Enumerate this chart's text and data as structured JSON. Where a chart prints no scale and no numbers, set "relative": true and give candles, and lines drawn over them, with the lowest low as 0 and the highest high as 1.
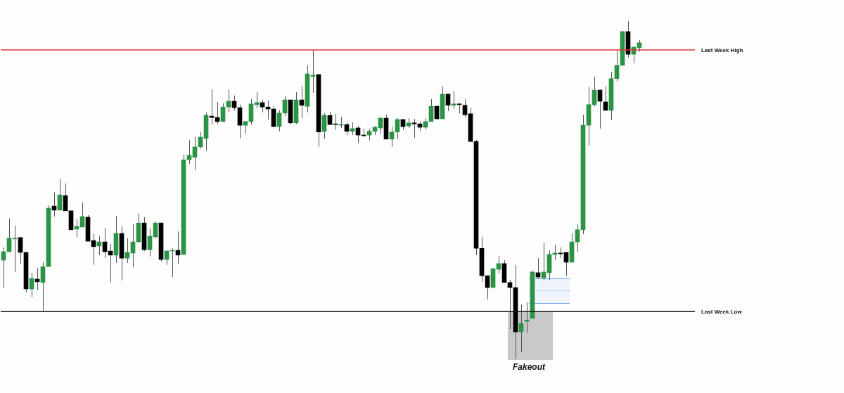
{
  "chart_data": {
    "type": "candlestick",
    "relative": true,
    "legend": false,
    "colors": [
      "#2b9444",
      "#2b9444",
      "#2b9444",
      "#000000",
      "#000000",
      "#2b9444",
      "#000000",
      "#2b9444",
      "#2b9444",
      "#000000",
      "#2b9444",
      "#000000",
      "#000000",
      "#2b9444",
      "#2b9444",
      "#000000",
      "#000000",
      "#2b9444",
      "#000000",
      "#000000",
      "#2b9444",
      "#000000",
      "#2b9444",
      "#2b9444",
      "#2b9444",
      "#000000",
      "#2b9444",
      "#2b9444",
      "#000000",
      "#2b9444",
      "#2b9444",
      "#000000",
      "#2b9444",
      "#2b9444",
      "#2b9444",
      "#2b9444",
      "#2b9444",
      "#000000",
      "#000000",
      "#2b9444",
      "#2b9444",
      "#000000",
      "#000000",
      "#2b9444",
      "#2b9444",
      "#2b9444",
      "#000000",
      "#000000",
      "#000000",
      "#2b9444",
      "#2b9444",
      "#000000",
      "#2b9444",
      "#000000",
      "#2b9444",
      "#2b9444",
      "#000000",
      "#2b9444",
      "#000000",
      "#000000",
      "#2b9444",
      "#000000",
      "#2b9444",
      "#000000",
      "#000000",
      "#2b9444",
      "#2b9444",
      "#2b9444",
      "#000000",
      "#2b9444",
      "#2b9444",
      "#000000",
      "#2b9444",
      "#000000",
      "#000000",
      "#2b9444",
      "#2b9444",
      "#000000",
      "#2b9444",
      "#000000",
      "#2b9444",
      "#000000",
      "#000000",
      "#000000",
      "#000000",
      "#000000",
      "#000000",
      "#2b9444",
      "#2b9444",
      "#000000",
      "#000000",
      "#000000",
      "#2b9444",
      "#2b9444",
      "#2b9444",
      "#000000",
      "#2b9444",
      "#2b9444",
      "#2b9444",
      "#000000",
      "#000000",
      "#2b9444",
      "#2b9444",
      "#2b9444",
      "#2b9444",
      "#2b9444",
      "#000000",
      "#000000",
      "#2b9444",
      "#2b9444",
      "#2b9444",
      "#000000",
      "#2b9444",
      "#2b9444"
    ],
    "categories": [
      null,
      null,
      null,
      null,
      null,
      null,
      null,
      null,
      null,
      null,
      null,
      null,
      null,
      null,
      null,
      null,
      null,
      null,
      null,
      null,
      null,
      null,
      null,
      null,
      null,
      null,
      null,
      null,
      null,
      null,
      null,
      null,
      null,
      null,
      null,
      null,
      null,
      null,
      null,
      null,
      null,
      null,
      null,
      null,
      null,
      null,
      null,
      null,
      null,
      null,
      null,
      null,
      null,
      null,
      null,
      null,
      null,
      null,
      null,
      null,
      null,
      null,
      null,
      null,
      null,
      null,
      null,
      null,
      null,
      null,
      null,
      null,
      null,
      null,
      null,
      null,
      null,
      null,
      null,
      null,
      null,
      null,
      null,
      null,
      null,
      null,
      null,
      null,
      null,
      null,
      null,
      null,
      null,
      null,
      null,
      null,
      null,
      null,
      null,
      null,
      null,
      null,
      null,
      null,
      null,
      null,
      null,
      null,
      null,
      null,
      null,
      null,
      null,
      null
    ],
    "ohlc": [
      [
        0.293,
        0.331,
        0.21,
        0.318
      ],
      [
        0.318,
        0.416,
        0.318,
        0.358
      ],
      [
        0.356,
        0.395,
        0.258,
        0.358
      ],
      [
        0.36,
        0.36,
        0.283,
        0.316
      ],
      [
        0.316,
        0.316,
        0.198,
        0.208
      ],
      [
        0.208,
        0.256,
        0.183,
        0.239
      ],
      [
        0.237,
        0.27,
        0.204,
        0.229
      ],
      [
        0.227,
        0.287,
        0.143,
        0.274
      ],
      [
        0.274,
        0.455,
        0.274,
        0.447
      ],
      [
        0.453,
        0.493,
        0.422,
        0.441
      ],
      [
        0.441,
        0.532,
        0.441,
        0.486
      ],
      [
        0.484,
        0.52,
        0.439,
        0.439
      ],
      [
        0.439,
        0.439,
        0.383,
        0.383
      ],
      [
        0.385,
        0.414,
        0.36,
        0.393
      ],
      [
        0.391,
        0.464,
        0.391,
        0.422
      ],
      [
        0.42,
        0.426,
        0.349,
        0.349
      ],
      [
        0.351,
        0.372,
        0.279,
        0.333
      ],
      [
        0.335,
        0.364,
        0.308,
        0.347
      ],
      [
        0.347,
        0.389,
        0.299,
        0.318
      ],
      [
        0.32,
        0.341,
        0.227,
        0.308
      ],
      [
        0.308,
        0.424,
        0.285,
        0.372
      ],
      [
        0.372,
        0.393,
        0.233,
        0.299
      ],
      [
        0.299,
        0.358,
        0.285,
        0.316
      ],
      [
        0.314,
        0.399,
        0.272,
        0.347
      ],
      [
        0.347,
        0.432,
        0.345,
        0.403
      ],
      [
        0.403,
        0.42,
        0.32,
        0.324
      ],
      [
        0.324,
        0.387,
        0.304,
        0.364
      ],
      [
        0.362,
        0.407,
        0.358,
        0.403
      ],
      [
        0.403,
        0.403,
        0.289,
        0.295
      ],
      [
        0.295,
        0.322,
        0.279,
        0.32
      ],
      [
        0.32,
        0.328,
        0.243,
        0.322
      ],
      [
        0.322,
        0.378,
        0.283,
        0.308
      ],
      [
        0.31,
        0.605,
        0.31,
        0.59
      ],
      [
        0.59,
        0.649,
        0.578,
        0.603
      ],
      [
        0.597,
        0.657,
        0.559,
        0.628
      ],
      [
        0.628,
        0.672,
        0.622,
        0.657
      ],
      [
        0.653,
        0.73,
        0.617,
        0.721
      ],
      [
        0.719,
        0.798,
        0.694,
        0.715
      ],
      [
        0.715,
        0.761,
        0.696,
        0.703
      ],
      [
        0.703,
        0.757,
        0.701,
        0.746
      ],
      [
        0.746,
        0.798,
        0.73,
        0.763
      ],
      [
        0.763,
        0.78,
        0.736,
        0.744
      ],
      [
        0.744,
        0.753,
        0.653,
        0.692
      ],
      [
        0.692,
        0.705,
        0.667,
        0.703
      ],
      [
        0.703,
        0.769,
        0.694,
        0.755
      ],
      [
        0.753,
        0.79,
        0.742,
        0.759
      ],
      [
        0.759,
        0.767,
        0.73,
        0.746
      ],
      [
        0.746,
        0.765,
        0.709,
        0.74
      ],
      [
        0.74,
        0.748,
        0.688,
        0.688
      ],
      [
        0.688,
        0.736,
        0.674,
        0.728
      ],
      [
        0.728,
        0.778,
        0.719,
        0.767
      ],
      [
        0.767,
        0.767,
        0.694,
        0.699
      ],
      [
        0.699,
        0.79,
        0.696,
        0.767
      ],
      [
        0.767,
        0.807,
        0.713,
        0.751
      ],
      [
        0.748,
        0.869,
        0.73,
        0.844
      ],
      [
        0.836,
        0.915,
        0.788,
        0.84
      ],
      [
        0.842,
        0.842,
        0.628,
        0.672
      ],
      [
        0.674,
        0.728,
        0.651,
        0.721
      ],
      [
        0.721,
        0.732,
        0.694,
        0.694
      ],
      [
        0.696,
        0.726,
        0.678,
        0.694
      ],
      [
        0.692,
        0.717,
        0.684,
        0.694
      ],
      [
        0.694,
        0.701,
        0.663,
        0.674
      ],
      [
        0.674,
        0.701,
        0.663,
        0.682
      ],
      [
        0.684,
        0.69,
        0.64,
        0.663
      ],
      [
        0.663,
        0.682,
        0.657,
        0.661
      ],
      [
        0.663,
        0.682,
        0.647,
        0.674
      ],
      [
        0.674,
        0.69,
        0.663,
        0.686
      ],
      [
        0.684,
        0.717,
        0.667,
        0.713
      ],
      [
        0.713,
        0.723,
        0.651,
        0.651
      ],
      [
        0.651,
        0.688,
        0.628,
        0.672
      ],
      [
        0.672,
        0.713,
        0.651,
        0.709
      ],
      [
        0.709,
        0.709,
        0.678,
        0.688
      ],
      [
        0.69,
        0.713,
        0.684,
        0.699
      ],
      [
        0.699,
        0.711,
        0.655,
        0.696
      ],
      [
        0.696,
        0.703,
        0.676,
        0.686
      ],
      [
        0.686,
        0.713,
        0.68,
        0.703
      ],
      [
        0.703,
        0.769,
        0.703,
        0.748
      ],
      [
        0.748,
        0.751,
        0.709,
        0.711
      ],
      [
        0.711,
        0.807,
        0.711,
        0.784
      ],
      [
        0.784,
        0.784,
        0.734,
        0.751
      ],
      [
        0.751,
        0.792,
        0.74,
        0.755
      ],
      [
        0.755,
        0.757,
        0.726,
        0.753
      ],
      [
        0.751,
        0.769,
        0.715,
        0.723
      ],
      [
        0.726,
        0.744,
        0.642,
        0.644
      ],
      [
        0.644,
        0.649,
        0.308,
        0.328
      ],
      [
        0.328,
        0.362,
        0.229,
        0.247
      ],
      [
        0.247,
        0.247,
        0.177,
        0.212
      ],
      [
        0.212,
        0.268,
        0.212,
        0.268
      ],
      [
        0.266,
        0.306,
        0.254,
        0.283
      ],
      [
        0.283,
        0.293,
        0.227,
        0.227
      ],
      [
        0.227,
        0.235,
        0.089,
        0.212
      ],
      [
        0.212,
        0.279,
        0,
        0.081
      ],
      [
        0.081,
        0.162,
        0.021,
        0.106
      ],
      [
        0.112,
        0.168,
        0.077,
        0.116
      ],
      [
        0.121,
        0.262,
        0.121,
        0.258
      ],
      [
        0.256,
        0.299,
        0.239,
        0.243
      ],
      [
        0.241,
        0.345,
        0.233,
        0.258
      ],
      [
        0.256,
        0.322,
        0.235,
        0.31
      ],
      [
        0.31,
        0.339,
        0.293,
        0.314
      ],
      [
        0.314,
        0.331,
        0.299,
        0.312
      ],
      [
        0.316,
        0.316,
        0.247,
        0.287
      ],
      [
        0.287,
        0.372,
        0.287,
        0.347
      ],
      [
        0.347,
        0.399,
        0.318,
        0.383
      ],
      [
        0.383,
        0.723,
        0.37,
        0.692
      ],
      [
        0.692,
        0.805,
        0.632,
        0.753
      ],
      [
        0.753,
        0.836,
        0.748,
        0.796
      ],
      [
        0.796,
        0.798,
        0.682,
        0.763
      ],
      [
        0.761,
        0.807,
        0.736,
        0.736
      ],
      [
        0.736,
        0.85,
        0.707,
        0.83
      ],
      [
        0.83,
        0.913,
        0.823,
        0.869
      ],
      [
        0.869,
        0.971,
        0.869,
        0.969
      ],
      [
        0.969,
        1,
        0.892,
        0.902
      ],
      [
        0.902,
        0.925,
        0.875,
        0.923
      ],
      [
        0.921,
        0.944,
        0.909,
        0.936
      ]
    ],
    "ref_lines": [
      {
        "axis": "y",
        "value": 0.915,
        "label": "Last Week High",
        "color": "#e0303a"
      },
      {
        "axis": "y",
        "value": 0.141,
        "label": "Last Week Low",
        "color": "#111111"
      }
    ],
    "annotations": [
      "Fakeout"
    ]
  }
}
